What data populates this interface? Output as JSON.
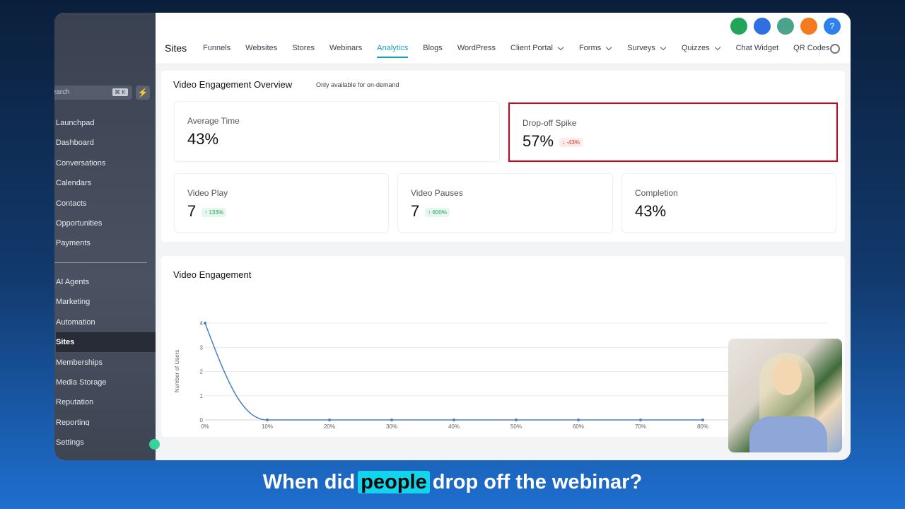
{
  "sidebar": {
    "search": "Search",
    "shortcut": "⌘ K",
    "main_items": [
      "Launchpad",
      "Dashboard",
      "Conversations",
      "Calendars",
      "Contacts",
      "Opportunities",
      "Payments"
    ],
    "tools_items": [
      "AI Agents",
      "Marketing",
      "Automation",
      "Sites",
      "Memberships",
      "Media Storage",
      "Reputation",
      "Reporting"
    ],
    "settings": "Settings"
  },
  "header": {
    "title": "Sites",
    "help_icon": "?",
    "tabs": [
      {
        "label": "Funnels"
      },
      {
        "label": "Websites"
      },
      {
        "label": "Stores"
      },
      {
        "label": "Webinars"
      },
      {
        "label": "Analytics",
        "active": true
      },
      {
        "label": "Blogs"
      },
      {
        "label": "WordPress"
      },
      {
        "label": "Client Portal",
        "dropdown": true
      },
      {
        "label": "Forms",
        "dropdown": true
      },
      {
        "label": "Surveys",
        "dropdown": true
      },
      {
        "label": "Quizzes",
        "dropdown": true
      },
      {
        "label": "Chat Widget"
      },
      {
        "label": "QR Codes"
      }
    ]
  },
  "overview": {
    "title": "Video Engagement Overview",
    "note": "Only available for on-demand",
    "cards": [
      {
        "label": "Average Time",
        "value": "43%"
      },
      {
        "label": "Drop-off Spike",
        "value": "57%",
        "change": "↓ -43%",
        "trend": "down",
        "highlighted": true
      },
      {
        "label": "Video Play",
        "value": "7",
        "change": "↑ 133%",
        "trend": "up"
      },
      {
        "label": "Video Pauses",
        "value": "7",
        "change": "↑ 600%",
        "trend": "up"
      },
      {
        "label": "Completion",
        "value": "43%"
      }
    ]
  },
  "chart_data": {
    "type": "line",
    "title": "Video Engagement",
    "y_label": "Number of Users",
    "categories": [
      "0%",
      "10%",
      "20%",
      "30%",
      "40%",
      "50%",
      "60%",
      "70%",
      "80%"
    ],
    "values": [
      4,
      0,
      0,
      0,
      0,
      0,
      0,
      0,
      0
    ],
    "color": "#4a7fc1",
    "ylim": [
      0,
      4
    ],
    "yticks": [
      0,
      1,
      2,
      3,
      4
    ],
    "grid": true
  },
  "caption": {
    "parts": [
      "When did",
      "people",
      "drop off the webinar?"
    ]
  }
}
